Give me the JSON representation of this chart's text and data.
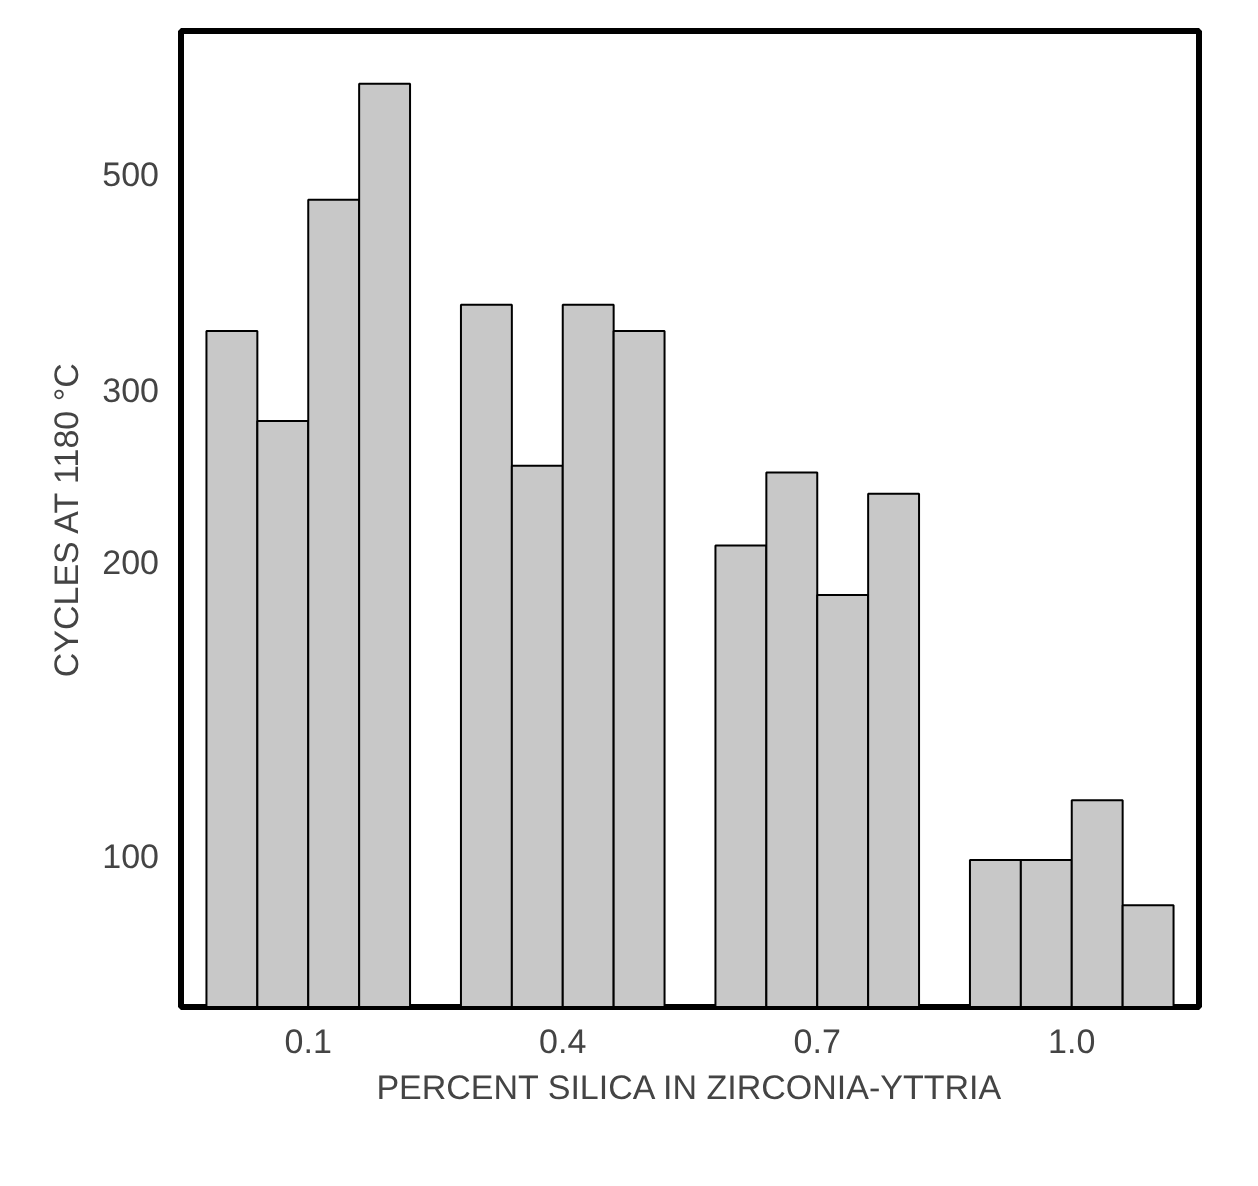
{
  "chart_data": {
    "type": "bar",
    "xlabel": "PERCENT SILICA IN ZIRCONIA-YTTRIA",
    "ylabel": "CYCLES AT 1180 °C",
    "categories": [
      "0.1",
      "0.4",
      "0.7",
      "1.0"
    ],
    "series": [
      {
        "color": "#c8c8c8",
        "values": [
          345,
          367,
          208,
          99
        ]
      },
      {
        "color": "#c8c8c8",
        "values": [
          279,
          251,
          247,
          99
        ]
      },
      {
        "color": "#c8c8c8",
        "values": [
          470,
          367,
          185,
          114
        ]
      },
      {
        "color": "#c8c8c8",
        "values": [
          618,
          345,
          235,
          89
        ]
      }
    ],
    "log": "y",
    "ylim": [
      70,
      700
    ],
    "yticks": [
      100,
      200,
      300,
      500
    ],
    "grid": false
  }
}
